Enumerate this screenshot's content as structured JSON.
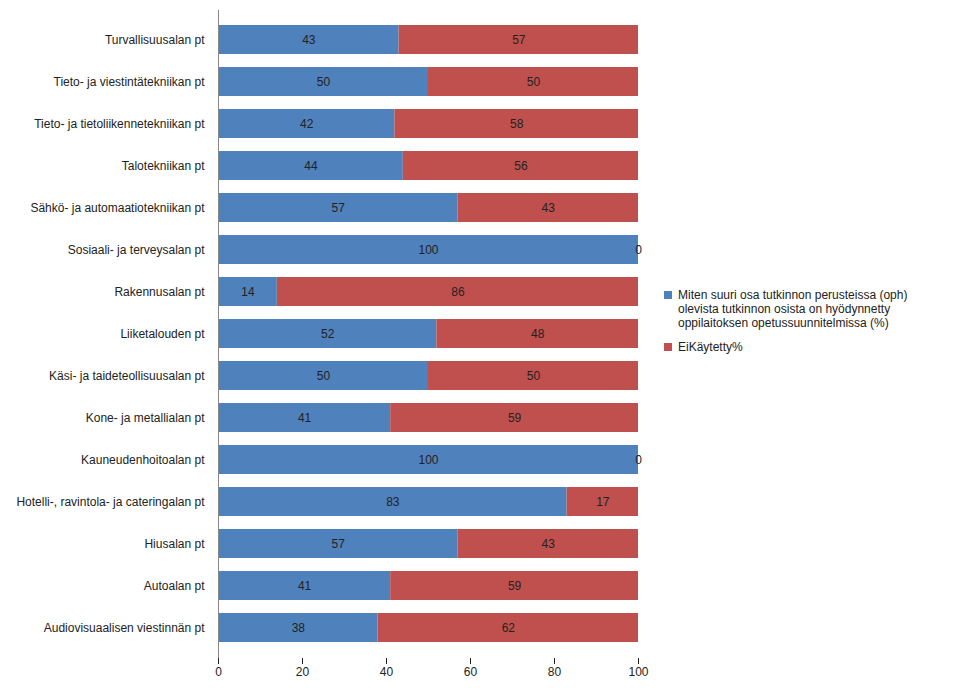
{
  "chart_data": {
    "type": "bar",
    "orientation": "horizontal",
    "stacked": true,
    "data_labels": true,
    "legend": "right",
    "grid": false,
    "categories": [
      "Turvallisuusalan pt",
      "Tieto- ja viestintätekniikan pt",
      "Tieto- ja tietoliikennetekniikan pt",
      "Talotekniikan pt",
      "Sähkö- ja automaatiotekniikan pt",
      "Sosiaali- ja terveysalan pt",
      "Rakennusalan pt",
      "Liiketalouden pt",
      "Käsi- ja taideteollisuusalan pt",
      "Kone- ja metallialan pt",
      "Kauneudenhoitoalan pt",
      "Hotelli-, ravintola- ja cateringalan pt",
      "Hiusalan pt",
      "Autoalan pt",
      "Audiovisuaalisen viestinnän pt"
    ],
    "series": [
      {
        "name": "Miten suuri osa tutkinnon perusteissa (oph) olevista tutkinnon osista on hyödynnetty oppilaitoksen opetussuunnitelmissa (%)",
        "color": "#4f81bd",
        "values": [
          43,
          50,
          42,
          44,
          57,
          100,
          14,
          52,
          50,
          41,
          100,
          83,
          57,
          41,
          38
        ]
      },
      {
        "name": "EiKäytetty%",
        "color": "#c0504d",
        "values": [
          57,
          50,
          58,
          56,
          43,
          0,
          86,
          48,
          50,
          59,
          0,
          17,
          43,
          59,
          62
        ]
      }
    ],
    "xlim": [
      0,
      100
    ],
    "xticks": [
      0,
      20,
      40,
      60,
      80,
      100
    ]
  }
}
